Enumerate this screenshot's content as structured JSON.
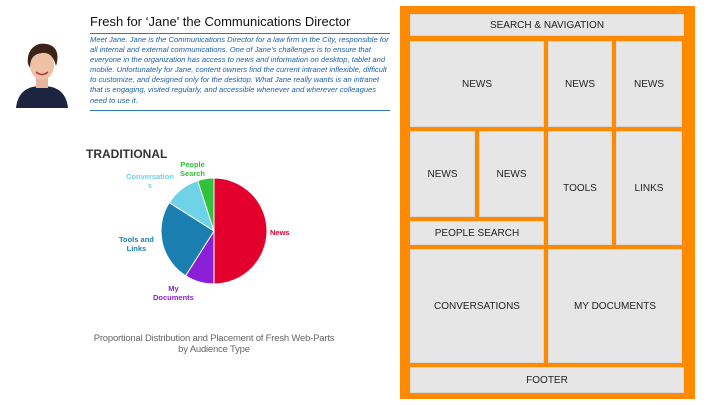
{
  "persona": {
    "title": "Fresh for ‘Jane' the Communications Director",
    "body": "Meet Jane. Jane is the Communications Director for a law firm in the City, responsible for all internal and external communications. One of Jane’s challenges is to ensure that everyone in the organization has access to news and information on desktop, tablet and mobile. Unfortunately for Jane, content owners find the current intranet inflexible, difficult to customize, and designed only for the desktop. What Jane really wants is an intranet that is engaging, visited regularly, and accessible whenever and wherever colleagues need to use it."
  },
  "chart_data": {
    "type": "pie",
    "title": "TRADITIONAL",
    "slices": [
      {
        "label": "News",
        "value": 50,
        "color": "#e3002d"
      },
      {
        "label": "My Documents",
        "value": 9,
        "color": "#8a1fd6"
      },
      {
        "label": "Tools and Links",
        "value": 25,
        "color": "#1a7fb0"
      },
      {
        "label": "Conversations",
        "value": 11,
        "color": "#6fd3e8"
      },
      {
        "label": "People Search",
        "value": 5,
        "color": "#2fc23a"
      }
    ],
    "labels_display": {
      "people_search": [
        "People",
        "Search"
      ],
      "conversations": [
        "Conversation",
        "s"
      ],
      "tools_links": [
        "Tools and",
        "Links"
      ],
      "my_documents": [
        "My",
        "Documents"
      ],
      "news": "News"
    }
  },
  "caption": {
    "line1": "Proportional Distribution and Placement of Fresh Web-Parts",
    "line2": "by Audience Type"
  },
  "wireframe": {
    "search_nav": "SEARCH & NAVIGATION",
    "news": "NEWS",
    "tools": "TOOLS",
    "links": "LINKS",
    "people_search": "PEOPLE SEARCH",
    "conversations": "CONVERSATIONS",
    "my_documents": "MY DOCUMENTS",
    "footer": "FOOTER",
    "frame_color": "#ff8a00"
  }
}
